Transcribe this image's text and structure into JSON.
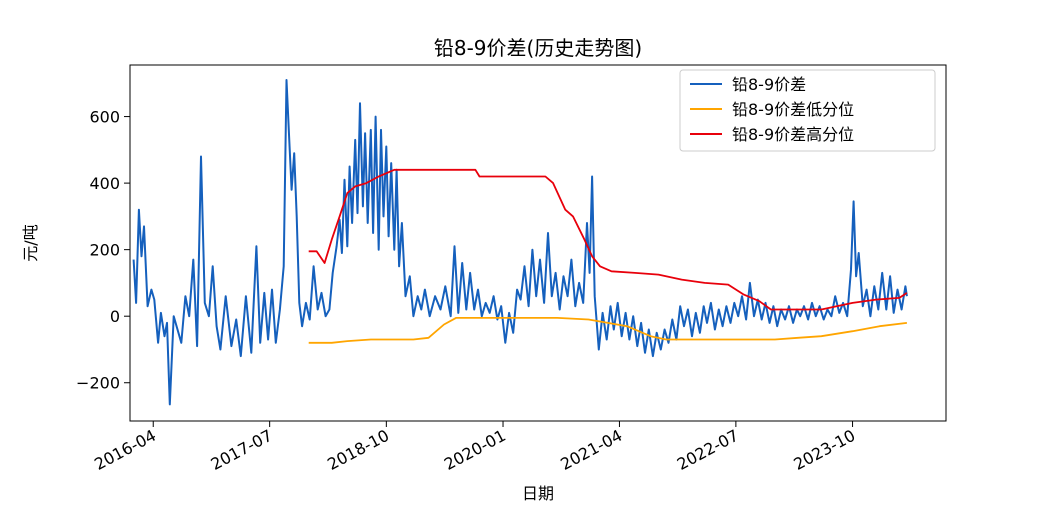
{
  "chart_data": {
    "type": "line",
    "title": "铅8-9价差(历史走势图)",
    "xlabel": "日期",
    "ylabel": "元/吨",
    "xlim": [
      "2016-01-01",
      "2024-10-01"
    ],
    "ylim": [
      -315,
      755
    ],
    "x_ticks": [
      "2016-04",
      "2017-07",
      "2018-10",
      "2020-01",
      "2021-04",
      "2022-07",
      "2023-10"
    ],
    "y_ticks": [
      -200,
      0,
      200,
      400,
      600
    ],
    "y_tick_labels": [
      "−200",
      "0",
      "200",
      "400",
      "600"
    ],
    "grid": false,
    "legend_position": "top-right",
    "series": [
      {
        "name": "铅8-9价差",
        "color": "#1560bd",
        "points": [
          [
            "2016-01-15",
            170
          ],
          [
            "2016-01-25",
            40
          ],
          [
            "2016-02-05",
            320
          ],
          [
            "2016-02-15",
            180
          ],
          [
            "2016-02-25",
            270
          ],
          [
            "2016-03-10",
            30
          ],
          [
            "2016-03-25",
            80
          ],
          [
            "2016-04-05",
            50
          ],
          [
            "2016-04-20",
            -80
          ],
          [
            "2016-05-01",
            10
          ],
          [
            "2016-05-15",
            -60
          ],
          [
            "2016-05-25",
            -20
          ],
          [
            "2016-06-05",
            -265
          ],
          [
            "2016-06-20",
            0
          ],
          [
            "2016-07-05",
            -40
          ],
          [
            "2016-07-20",
            -80
          ],
          [
            "2016-08-05",
            60
          ],
          [
            "2016-08-20",
            0
          ],
          [
            "2016-09-05",
            170
          ],
          [
            "2016-09-20",
            -90
          ],
          [
            "2016-10-05",
            480
          ],
          [
            "2016-10-20",
            40
          ],
          [
            "2016-11-05",
            0
          ],
          [
            "2016-11-20",
            150
          ],
          [
            "2016-12-05",
            -30
          ],
          [
            "2016-12-20",
            -100
          ],
          [
            "2017-01-10",
            60
          ],
          [
            "2017-02-01",
            -90
          ],
          [
            "2017-02-20",
            -10
          ],
          [
            "2017-03-10",
            -120
          ],
          [
            "2017-03-30",
            60
          ],
          [
            "2017-04-20",
            -110
          ],
          [
            "2017-05-10",
            210
          ],
          [
            "2017-05-25",
            -80
          ],
          [
            "2017-06-10",
            70
          ],
          [
            "2017-06-25",
            -70
          ],
          [
            "2017-07-10",
            80
          ],
          [
            "2017-07-25",
            -80
          ],
          [
            "2017-08-10",
            20
          ],
          [
            "2017-08-25",
            150
          ],
          [
            "2017-09-05",
            710
          ],
          [
            "2017-09-15",
            540
          ],
          [
            "2017-09-25",
            380
          ],
          [
            "2017-10-05",
            490
          ],
          [
            "2017-10-15",
            300
          ],
          [
            "2017-10-25",
            40
          ],
          [
            "2017-11-05",
            -30
          ],
          [
            "2017-11-20",
            40
          ],
          [
            "2017-12-05",
            -10
          ],
          [
            "2017-12-20",
            150
          ],
          [
            "2018-01-05",
            20
          ],
          [
            "2018-01-20",
            70
          ],
          [
            "2018-02-05",
            0
          ],
          [
            "2018-02-20",
            20
          ],
          [
            "2018-03-05",
            130
          ],
          [
            "2018-03-20",
            210
          ],
          [
            "2018-04-01",
            290
          ],
          [
            "2018-04-10",
            190
          ],
          [
            "2018-04-20",
            410
          ],
          [
            "2018-05-01",
            210
          ],
          [
            "2018-05-10",
            450
          ],
          [
            "2018-05-20",
            280
          ],
          [
            "2018-06-01",
            530
          ],
          [
            "2018-06-10",
            310
          ],
          [
            "2018-06-20",
            640
          ],
          [
            "2018-07-01",
            330
          ],
          [
            "2018-07-10",
            550
          ],
          [
            "2018-07-20",
            280
          ],
          [
            "2018-08-01",
            560
          ],
          [
            "2018-08-10",
            250
          ],
          [
            "2018-08-20",
            600
          ],
          [
            "2018-09-01",
            200
          ],
          [
            "2018-09-10",
            560
          ],
          [
            "2018-09-20",
            300
          ],
          [
            "2018-10-01",
            510
          ],
          [
            "2018-10-10",
            240
          ],
          [
            "2018-10-20",
            460
          ],
          [
            "2018-11-01",
            200
          ],
          [
            "2018-11-10",
            440
          ],
          [
            "2018-11-20",
            150
          ],
          [
            "2018-12-01",
            280
          ],
          [
            "2018-12-15",
            60
          ],
          [
            "2019-01-01",
            120
          ],
          [
            "2019-01-15",
            0
          ],
          [
            "2019-02-01",
            60
          ],
          [
            "2019-02-15",
            20
          ],
          [
            "2019-03-01",
            80
          ],
          [
            "2019-03-20",
            0
          ],
          [
            "2019-04-10",
            60
          ],
          [
            "2019-05-01",
            20
          ],
          [
            "2019-05-20",
            90
          ],
          [
            "2019-06-10",
            0
          ],
          [
            "2019-06-25",
            210
          ],
          [
            "2019-07-10",
            10
          ],
          [
            "2019-07-25",
            160
          ],
          [
            "2019-08-10",
            20
          ],
          [
            "2019-08-25",
            130
          ],
          [
            "2019-09-10",
            20
          ],
          [
            "2019-09-25",
            80
          ],
          [
            "2019-10-10",
            0
          ],
          [
            "2019-10-25",
            40
          ],
          [
            "2019-11-10",
            10
          ],
          [
            "2019-11-25",
            60
          ],
          [
            "2019-12-10",
            -10
          ],
          [
            "2019-12-25",
            30
          ],
          [
            "2020-01-10",
            -80
          ],
          [
            "2020-01-25",
            10
          ],
          [
            "2020-02-10",
            -50
          ],
          [
            "2020-02-25",
            80
          ],
          [
            "2020-03-10",
            50
          ],
          [
            "2020-03-25",
            150
          ],
          [
            "2020-04-10",
            30
          ],
          [
            "2020-04-25",
            200
          ],
          [
            "2020-05-10",
            60
          ],
          [
            "2020-05-25",
            170
          ],
          [
            "2020-06-10",
            40
          ],
          [
            "2020-06-25",
            250
          ],
          [
            "2020-07-10",
            60
          ],
          [
            "2020-07-25",
            130
          ],
          [
            "2020-08-10",
            20
          ],
          [
            "2020-08-25",
            120
          ],
          [
            "2020-09-10",
            60
          ],
          [
            "2020-09-25",
            170
          ],
          [
            "2020-10-10",
            30
          ],
          [
            "2020-10-25",
            100
          ],
          [
            "2020-11-10",
            40
          ],
          [
            "2020-11-25",
            280
          ],
          [
            "2020-12-05",
            130
          ],
          [
            "2020-12-15",
            420
          ],
          [
            "2020-12-25",
            60
          ],
          [
            "2021-01-10",
            -100
          ],
          [
            "2021-01-25",
            10
          ],
          [
            "2021-02-10",
            -70
          ],
          [
            "2021-02-25",
            30
          ],
          [
            "2021-03-10",
            -40
          ],
          [
            "2021-03-25",
            40
          ],
          [
            "2021-04-10",
            -60
          ],
          [
            "2021-04-25",
            10
          ],
          [
            "2021-05-10",
            -70
          ],
          [
            "2021-05-25",
            0
          ],
          [
            "2021-06-10",
            -90
          ],
          [
            "2021-06-25",
            -20
          ],
          [
            "2021-07-10",
            -110
          ],
          [
            "2021-07-25",
            -40
          ],
          [
            "2021-08-10",
            -120
          ],
          [
            "2021-08-25",
            -50
          ],
          [
            "2021-09-10",
            -100
          ],
          [
            "2021-09-25",
            -40
          ],
          [
            "2021-10-10",
            -80
          ],
          [
            "2021-10-25",
            -10
          ],
          [
            "2021-11-10",
            -70
          ],
          [
            "2021-11-25",
            30
          ],
          [
            "2021-12-10",
            -30
          ],
          [
            "2021-12-25",
            20
          ],
          [
            "2022-01-10",
            -60
          ],
          [
            "2022-01-25",
            10
          ],
          [
            "2022-02-10",
            -50
          ],
          [
            "2022-02-25",
            30
          ],
          [
            "2022-03-10",
            -20
          ],
          [
            "2022-03-25",
            40
          ],
          [
            "2022-04-10",
            -40
          ],
          [
            "2022-04-25",
            20
          ],
          [
            "2022-05-10",
            -30
          ],
          [
            "2022-05-25",
            30
          ],
          [
            "2022-06-10",
            -20
          ],
          [
            "2022-06-25",
            40
          ],
          [
            "2022-07-10",
            0
          ],
          [
            "2022-07-25",
            60
          ],
          [
            "2022-08-10",
            -10
          ],
          [
            "2022-08-25",
            100
          ],
          [
            "2022-09-10",
            0
          ],
          [
            "2022-09-25",
            50
          ],
          [
            "2022-10-10",
            -10
          ],
          [
            "2022-10-25",
            40
          ],
          [
            "2022-11-10",
            -20
          ],
          [
            "2022-11-25",
            30
          ],
          [
            "2022-12-10",
            -30
          ],
          [
            "2022-12-25",
            20
          ],
          [
            "2023-01-10",
            -10
          ],
          [
            "2023-01-25",
            30
          ],
          [
            "2023-02-10",
            -20
          ],
          [
            "2023-02-25",
            20
          ],
          [
            "2023-03-10",
            0
          ],
          [
            "2023-03-25",
            30
          ],
          [
            "2023-04-10",
            -10
          ],
          [
            "2023-04-25",
            40
          ],
          [
            "2023-05-10",
            0
          ],
          [
            "2023-05-25",
            30
          ],
          [
            "2023-06-10",
            -10
          ],
          [
            "2023-06-25",
            20
          ],
          [
            "2023-07-10",
            0
          ],
          [
            "2023-07-25",
            60
          ],
          [
            "2023-08-10",
            10
          ],
          [
            "2023-08-25",
            40
          ],
          [
            "2023-09-10",
            0
          ],
          [
            "2023-09-25",
            140
          ],
          [
            "2023-10-05",
            345
          ],
          [
            "2023-10-15",
            120
          ],
          [
            "2023-10-25",
            190
          ],
          [
            "2023-11-10",
            30
          ],
          [
            "2023-11-25",
            80
          ],
          [
            "2023-12-10",
            0
          ],
          [
            "2023-12-25",
            90
          ],
          [
            "2024-01-10",
            20
          ],
          [
            "2024-01-25",
            130
          ],
          [
            "2024-02-10",
            20
          ],
          [
            "2024-02-25",
            120
          ],
          [
            "2024-03-10",
            10
          ],
          [
            "2024-03-25",
            80
          ],
          [
            "2024-04-10",
            20
          ],
          [
            "2024-04-25",
            90
          ],
          [
            "2024-05-01",
            60
          ]
        ]
      },
      {
        "name": "铅8-9价差低分位",
        "color": "#ffa500",
        "points": [
          [
            "2017-12-01",
            -80
          ],
          [
            "2018-03-01",
            -80
          ],
          [
            "2018-05-01",
            -75
          ],
          [
            "2018-08-01",
            -70
          ],
          [
            "2019-01-15",
            -70
          ],
          [
            "2019-03-15",
            -65
          ],
          [
            "2019-05-15",
            -25
          ],
          [
            "2019-07-01",
            -5
          ],
          [
            "2020-08-01",
            -5
          ],
          [
            "2020-12-01",
            -10
          ],
          [
            "2021-05-01",
            -30
          ],
          [
            "2021-08-01",
            -60
          ],
          [
            "2021-10-01",
            -70
          ],
          [
            "2022-06-01",
            -70
          ],
          [
            "2022-12-01",
            -70
          ],
          [
            "2023-03-01",
            -65
          ],
          [
            "2023-06-01",
            -60
          ],
          [
            "2023-10-01",
            -45
          ],
          [
            "2024-01-15",
            -30
          ],
          [
            "2024-05-01",
            -20
          ]
        ]
      },
      {
        "name": "铅8-9价差高分位",
        "color": "#e8000b",
        "points": [
          [
            "2017-12-01",
            195
          ],
          [
            "2018-01-01",
            195
          ],
          [
            "2018-02-01",
            160
          ],
          [
            "2018-03-01",
            230
          ],
          [
            "2018-04-01",
            300
          ],
          [
            "2018-05-01",
            370
          ],
          [
            "2018-06-01",
            390
          ],
          [
            "2018-07-15",
            400
          ],
          [
            "2018-09-01",
            420
          ],
          [
            "2018-11-01",
            440
          ],
          [
            "2019-09-15",
            440
          ],
          [
            "2019-10-01",
            420
          ],
          [
            "2020-06-15",
            420
          ],
          [
            "2020-07-15",
            400
          ],
          [
            "2020-09-01",
            320
          ],
          [
            "2020-10-01",
            300
          ],
          [
            "2020-11-15",
            230
          ],
          [
            "2020-12-15",
            180
          ],
          [
            "2021-01-15",
            150
          ],
          [
            "2021-03-01",
            135
          ],
          [
            "2021-06-01",
            130
          ],
          [
            "2021-09-01",
            125
          ],
          [
            "2021-12-01",
            110
          ],
          [
            "2022-03-01",
            100
          ],
          [
            "2022-06-01",
            95
          ],
          [
            "2022-08-01",
            65
          ],
          [
            "2022-10-01",
            45
          ],
          [
            "2022-11-15",
            20
          ],
          [
            "2023-06-01",
            20
          ],
          [
            "2023-10-01",
            40
          ],
          [
            "2024-01-01",
            50
          ],
          [
            "2024-04-01",
            55
          ],
          [
            "2024-05-01",
            70
          ]
        ]
      }
    ]
  }
}
